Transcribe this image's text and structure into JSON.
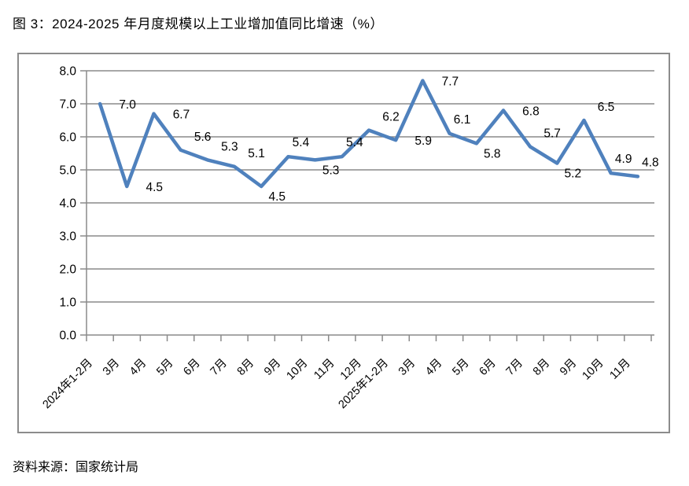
{
  "figure": {
    "title": "图 3：2024-2025 年月度规模以上工业增加值同比增速（%）",
    "source": "资料来源：国家统计局"
  },
  "chart_data": {
    "type": "line",
    "title": "图 3：2024-2025 年月度规模以上工业增加值同比增速（%）",
    "categories": [
      "2024年1-2月",
      "3月",
      "4月",
      "5月",
      "6月",
      "7月",
      "8月",
      "9月",
      "10月",
      "11月",
      "12月",
      "2025年1-2月",
      "3月",
      "4月",
      "5月",
      "6月",
      "7月",
      "8月",
      "9月",
      "10月",
      "11月"
    ],
    "values": [
      7.0,
      4.5,
      6.7,
      5.6,
      5.3,
      5.1,
      4.5,
      5.4,
      5.3,
      5.4,
      6.2,
      5.9,
      7.7,
      6.1,
      5.8,
      6.8,
      5.7,
      5.2,
      6.5,
      4.9,
      4.8
    ],
    "data_labels": [
      "7.0",
      "4.5",
      "6.7",
      "5.6",
      "5.3",
      "5.1",
      "4.5",
      "5.4",
      "5.3",
      "5.4",
      "6.2",
      "5.9",
      "7.7",
      "6.1",
      "5.8",
      "6.8",
      "5.7",
      "5.2",
      "6.5",
      "4.9",
      "4.8"
    ],
    "ytick_labels": [
      "0.0",
      "1.0",
      "2.0",
      "3.0",
      "4.0",
      "5.0",
      "6.0",
      "7.0",
      "8.0"
    ],
    "xlabel": "",
    "ylabel": "",
    "ylim": [
      0.0,
      8.0
    ],
    "ytick_step": 1.0,
    "grid": "horizontal",
    "legend": "none",
    "x_label_rotation_deg": -45,
    "label_positions": [
      "right",
      "right",
      "right",
      "above",
      "above",
      "above",
      "below",
      "above-near",
      "below",
      "above-near",
      "above",
      "right",
      "right",
      "above-near",
      "below",
      "right",
      "above",
      "below",
      "above",
      "above-near",
      "above-near"
    ],
    "colors": {
      "line": "#4F81BD",
      "grid": "#8A8A8A",
      "axis": "#8A8A8A",
      "text": "#000000",
      "frame_border": "#8C8C8C"
    }
  }
}
